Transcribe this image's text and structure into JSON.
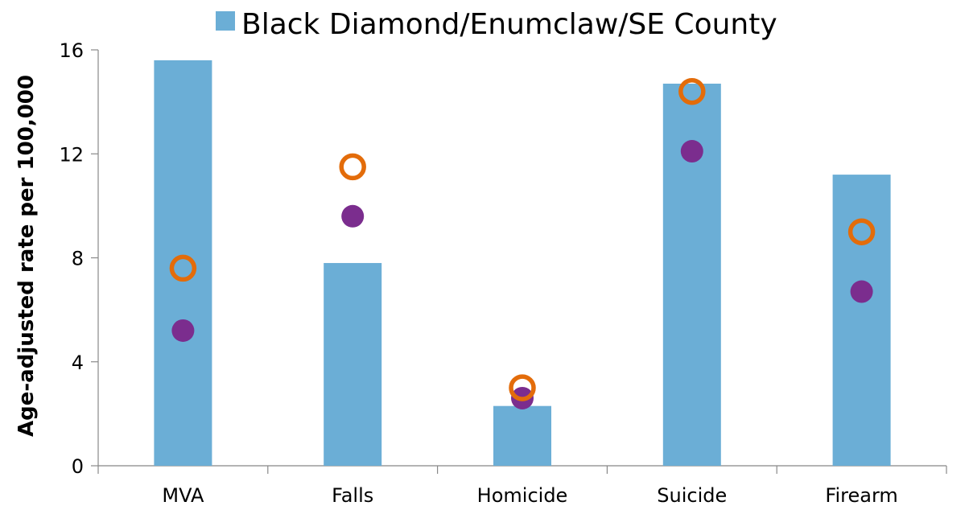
{
  "chart_data": {
    "type": "bar",
    "title": "",
    "xlabel": "",
    "ylabel": "Age-adjusted rate per 100,000",
    "ylim": [
      0,
      16
    ],
    "yticks": [
      0,
      4,
      8,
      12,
      16
    ],
    "grid": false,
    "legend_position": "top",
    "categories": [
      "MVA",
      "Falls",
      "Homicide",
      "Suicide",
      "Firearm"
    ],
    "series": [
      {
        "name": "Black Diamond/Enumclaw/SE County",
        "type": "bar",
        "color": "#6baed6",
        "values": [
          15.6,
          7.8,
          2.3,
          14.7,
          11.2
        ]
      },
      {
        "type": "scatter",
        "marker": "filled-circle",
        "color": "#7b2d8e",
        "values": [
          5.2,
          9.6,
          2.6,
          12.1,
          6.7
        ]
      },
      {
        "type": "scatter",
        "marker": "open-circle",
        "color": "#e36c0a",
        "values": [
          7.6,
          11.5,
          3.0,
          14.4,
          9.0
        ]
      }
    ]
  }
}
